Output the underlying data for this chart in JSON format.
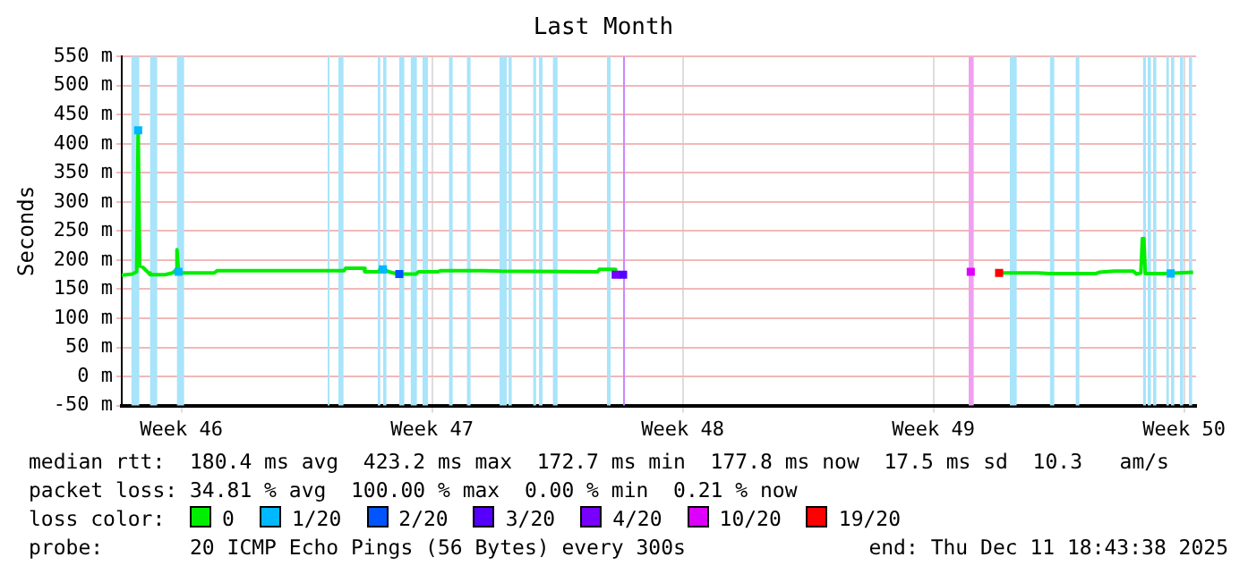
{
  "chart_data": {
    "type": "line",
    "title": "Last Month",
    "ylabel": "Seconds",
    "legend_title": "loss color:",
    "xlim": [
      "2025-11-11T20:00",
      "2025-12-11T20:00"
    ],
    "xticks": [
      {
        "value": "2025-11-13T12:00",
        "label": "Week 46"
      },
      {
        "value": "2025-11-20T12:00",
        "label": "Week 47"
      },
      {
        "value": "2025-11-27T12:00",
        "label": "Week 48"
      },
      {
        "value": "2025-12-04T12:00",
        "label": "Week 49"
      },
      {
        "value": "2025-12-11T12:00",
        "label": "Week 50"
      }
    ],
    "ylim": [
      -50,
      550
    ],
    "yticks": [
      {
        "value": -50,
        "label": "-50 m"
      },
      {
        "value": 0,
        "label": "0 m"
      },
      {
        "value": 50,
        "label": "50 m"
      },
      {
        "value": 100,
        "label": "100 m"
      },
      {
        "value": 150,
        "label": "150 m"
      },
      {
        "value": 200,
        "label": "200 m"
      },
      {
        "value": 250,
        "label": "250 m"
      },
      {
        "value": 300,
        "label": "300 m"
      },
      {
        "value": 350,
        "label": "350 m"
      },
      {
        "value": 400,
        "label": "400 m"
      },
      {
        "value": 450,
        "label": "450 m"
      },
      {
        "value": 500,
        "label": "500 m"
      },
      {
        "value": 550,
        "label": "550 m"
      }
    ],
    "grid": true,
    "legend": "bottom",
    "marker": "none",
    "line_style": "solid",
    "series": [
      {
        "name": "0",
        "color": "#00ee00",
        "x": [
          "2025-11-11T20:00",
          "2025-11-12T03:00",
          "2025-11-12T06:00",
          "2025-11-12T07:00",
          "2025-11-12T08:00",
          "2025-11-12T10:00",
          "2025-11-12T14:00",
          "2025-11-12T15:00",
          "2025-11-13T01:00",
          "2025-11-13T06:00",
          "2025-11-13T08:00",
          "2025-11-13T09:00",
          "2025-11-13T10:00",
          "2025-11-13T13:00",
          "2025-11-14T10:00",
          "2025-11-14T12:00",
          "2025-11-18T01:00",
          "2025-11-18T02:00",
          "2025-11-18T14:00",
          "2025-11-18T15:00",
          "2025-11-19T00:00",
          "2025-11-19T01:00",
          "2025-11-19T04:00",
          "2025-11-19T07:00",
          "2025-11-19T13:00",
          "2025-11-20T01:00",
          "2025-11-20T03:00",
          "2025-11-20T16:00",
          "2025-11-20T18:00",
          "2025-11-21T22:00",
          "2025-11-22T10:00",
          "2025-11-25T03:00",
          "2025-11-25T04:00",
          "2025-11-25T14:00",
          "2025-11-25T15:00",
          "2025-11-25T20:00",
          "2025-11-25T22:00",
          "2025-12-06T08:00",
          "2025-12-07T10:00",
          "2025-12-07T18:00",
          "2025-12-09T01:00",
          "2025-12-09T03:00",
          "2025-12-09T13:00",
          "2025-12-10T02:00",
          "2025-12-10T04:00",
          "2025-12-10T07:00",
          "2025-12-10T08:00",
          "2025-12-10T09:00",
          "2025-12-10T10:00",
          "2025-12-10T22:00",
          "2025-12-11T18:00"
        ],
        "values": [
          174,
          176,
          180,
          423,
          190,
          188,
          178,
          175,
          175,
          178,
          182,
          218,
          180,
          178,
          178,
          182,
          182,
          186,
          186,
          180,
          180,
          184,
          184,
          180,
          176,
          176,
          180,
          180,
          182,
          182,
          181,
          180,
          184,
          184,
          175,
          175,
          null,
          178,
          178,
          177,
          177,
          179,
          181,
          181,
          176,
          178,
          237,
          235,
          177,
          177,
          179
        ]
      },
      {
        "name": "1/20",
        "type": "scatter",
        "marker": "square",
        "color": "#00b8ff",
        "x": [
          "2025-11-12T07:00",
          "2025-11-13T10:00",
          "2025-11-19T03:00",
          "2025-12-11T03:00"
        ],
        "values": [
          423,
          180,
          184,
          177
        ]
      },
      {
        "name": "2/20",
        "type": "scatter",
        "marker": "square",
        "color": "#0055ff",
        "x": [
          "2025-11-19T14:00"
        ],
        "values": [
          176
        ]
      },
      {
        "name": "3/20",
        "type": "scatter",
        "marker": "square",
        "color": "#5500ff",
        "x": [
          "2025-11-25T20:00"
        ],
        "values": [
          175
        ]
      },
      {
        "name": "4/20",
        "type": "scatter",
        "marker": "square",
        "color": "#7700ff",
        "x": [
          "2025-11-25T15:00"
        ],
        "values": [
          175
        ]
      },
      {
        "name": "10/20",
        "type": "scatter",
        "marker": "square",
        "color": "#dd00ff",
        "x": [
          "2025-12-05T13:00"
        ],
        "values": [
          180
        ]
      },
      {
        "name": "19/20",
        "type": "scatter",
        "marker": "square",
        "color": "#ff0000",
        "x": [
          "2025-12-06T08:00"
        ],
        "values": [
          178
        ]
      }
    ],
    "bands": [
      {
        "axis": "x",
        "from": "2025-11-12T02:30",
        "to": "2025-11-12T07:46",
        "color": "#a8e4fa"
      },
      {
        "axis": "x",
        "from": "2025-11-12T15:00",
        "to": "2025-11-12T19:46",
        "color": "#a8e4fa"
      },
      {
        "axis": "x",
        "from": "2025-11-13T09:00",
        "to": "2025-11-13T13:46",
        "color": "#a8e4fa"
      },
      {
        "axis": "x",
        "from": "2025-11-17T14:00",
        "to": "2025-11-17T15:12",
        "color": "#a8e4fa"
      },
      {
        "axis": "x",
        "from": "2025-11-17T21:12",
        "to": "2025-11-18T00:36",
        "color": "#a8e4fa"
      },
      {
        "axis": "x",
        "from": "2025-11-18T23:36",
        "to": "2025-11-19T01:17",
        "color": "#a8e4fa"
      },
      {
        "axis": "x",
        "from": "2025-11-19T03:12",
        "to": "2025-11-19T05:22",
        "color": "#a8e4fa"
      },
      {
        "axis": "x",
        "from": "2025-11-19T14:00",
        "to": "2025-11-19T17:22",
        "color": "#a8e4fa"
      },
      {
        "axis": "x",
        "from": "2025-11-19T21:41",
        "to": "2025-11-20T01:46",
        "color": "#a8e4fa"
      },
      {
        "axis": "x",
        "from": "2025-11-20T05:36",
        "to": "2025-11-20T09:12",
        "color": "#a8e4fa"
      },
      {
        "axis": "x",
        "from": "2025-11-20T23:22",
        "to": "2025-11-21T01:46",
        "color": "#a8e4fa"
      },
      {
        "axis": "x",
        "from": "2025-11-21T11:22",
        "to": "2025-11-21T13:46",
        "color": "#a8e4fa"
      },
      {
        "axis": "x",
        "from": "2025-11-22T09:12",
        "to": "2025-11-22T14:00",
        "color": "#a8e4fa"
      },
      {
        "axis": "x",
        "from": "2025-11-22T15:12",
        "to": "2025-11-22T17:22",
        "color": "#a8e4fa"
      },
      {
        "axis": "x",
        "from": "2025-11-23T07:46",
        "to": "2025-11-23T09:41",
        "color": "#a8e4fa"
      },
      {
        "axis": "x",
        "from": "2025-11-23T11:36",
        "to": "2025-11-23T14:00",
        "color": "#a8e4fa"
      },
      {
        "axis": "x",
        "from": "2025-11-23T20:58",
        "to": "2025-11-24T00:05",
        "color": "#a8e4fa"
      },
      {
        "axis": "x",
        "from": "2025-11-25T09:12",
        "to": "2025-11-25T11:36",
        "color": "#a8e4fa"
      },
      {
        "axis": "x",
        "from": "2025-11-25T20:00",
        "to": "2025-11-25T21:12",
        "color": "#cc88ff"
      },
      {
        "axis": "x",
        "from": "2025-12-05T11:36",
        "to": "2025-12-05T14:58",
        "color": "#f0a0f0"
      },
      {
        "axis": "x",
        "from": "2025-12-06T15:12",
        "to": "2025-12-06T19:46",
        "color": "#a8e4fa"
      },
      {
        "axis": "x",
        "from": "2025-12-07T18:05",
        "to": "2025-12-07T20:58",
        "color": "#a8e4fa"
      },
      {
        "axis": "x",
        "from": "2025-12-08T11:22",
        "to": "2025-12-08T13:46",
        "color": "#a8e4fa"
      },
      {
        "axis": "x",
        "from": "2025-12-10T08:29",
        "to": "2025-12-10T10:24",
        "color": "#a8e4fa"
      },
      {
        "axis": "x",
        "from": "2025-12-10T11:36",
        "to": "2025-12-10T13:46",
        "color": "#a8e4fa"
      },
      {
        "axis": "x",
        "from": "2025-12-10T15:12",
        "to": "2025-12-10T17:22",
        "color": "#a8e4fa"
      },
      {
        "axis": "x",
        "from": "2025-12-11T00:05",
        "to": "2025-12-11T01:46",
        "color": "#a8e4fa"
      },
      {
        "axis": "x",
        "from": "2025-12-11T03:12",
        "to": "2025-12-11T05:22",
        "color": "#a8e4fa"
      },
      {
        "axis": "x",
        "from": "2025-12-11T09:12",
        "to": "2025-12-11T11:22",
        "color": "#a8e4fa"
      },
      {
        "axis": "x",
        "from": "2025-12-11T15:12",
        "to": "2025-12-11T17:22",
        "color": "#a8e4fa"
      }
    ],
    "annotations": [
      "median rtt:  180.4 ms avg  423.2 ms max  172.7 ms min  177.8 ms now  17.5 ms sd  10.3   am/s",
      "packet loss: 34.81 % avg  100.00 % max  0.00 % min  0.21 % now",
      "probe:       20 ICMP Echo Pings (56 Bytes) every 300s",
      "end: Thu Dec 11 18:43:38 2025"
    ]
  }
}
